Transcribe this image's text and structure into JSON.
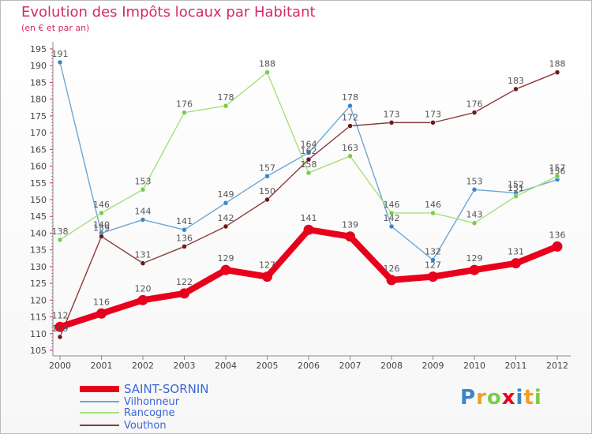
{
  "chart_data": {
    "type": "line",
    "title": "Evolution des Impôts locaux par Habitant",
    "subtitle": "(en € et par an)",
    "categories": [
      "2000",
      "2001",
      "2002",
      "2003",
      "2004",
      "2005",
      "2006",
      "2007",
      "2008",
      "2009",
      "2010",
      "2011",
      "2012"
    ],
    "ylim": [
      105,
      195
    ],
    "ytick_step": 5,
    "grid": false,
    "legend_position": "bottom-left",
    "series": [
      {
        "name": "SAINT-SORNIN",
        "color": "#e8001c",
        "point_color": "#e8001c",
        "values": [
          112,
          116,
          120,
          122,
          129,
          127,
          141,
          139,
          126,
          127,
          129,
          131,
          136
        ]
      },
      {
        "name": "Vilhonneur",
        "color": "#6da6d5",
        "point_color": "#3a86c8",
        "values": [
          191,
          140,
          144,
          141,
          149,
          157,
          164,
          178,
          142,
          132,
          153,
          152,
          156
        ]
      },
      {
        "name": "Rancogne",
        "color": "#a6e07a",
        "point_color": "#7ccc4a",
        "values": [
          138,
          146,
          153,
          176,
          178,
          188,
          158,
          163,
          146,
          146,
          143,
          151,
          157
        ]
      },
      {
        "name": "Vouthon",
        "color": "#8b3a3a",
        "point_color": "#6b1a1a",
        "values": [
          109,
          139,
          131,
          136,
          142,
          150,
          162,
          172,
          173,
          173,
          176,
          183,
          188
        ]
      }
    ]
  },
  "brand": {
    "letters": [
      "P",
      "r",
      "o",
      "x",
      "i",
      "t",
      "i"
    ],
    "colors": [
      "#3a86c8",
      "#f0a020",
      "#7ccc4a",
      "#e8001c",
      "#3a86c8",
      "#f0a020",
      "#7ccc4a"
    ]
  }
}
